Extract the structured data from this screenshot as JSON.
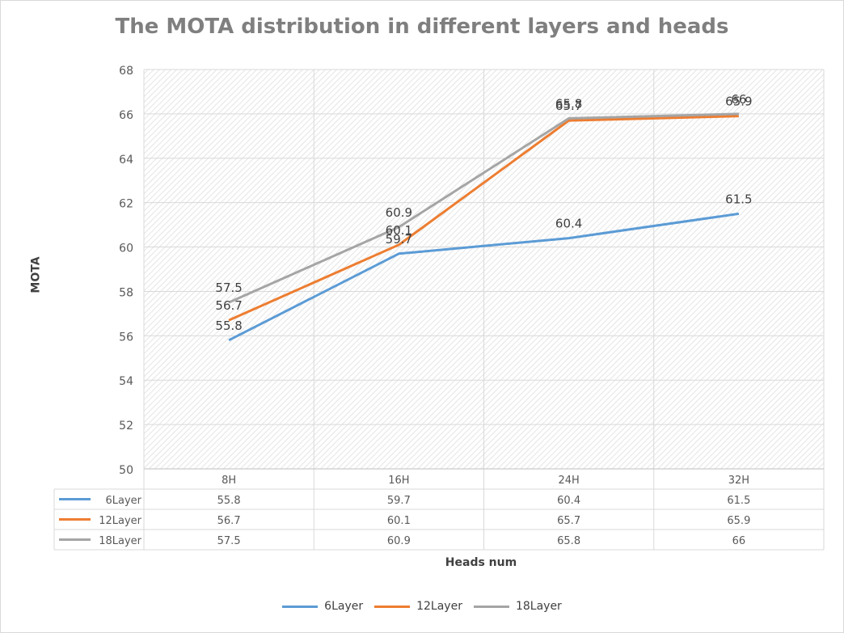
{
  "chart_data": {
    "type": "line",
    "title": "The MOTA distribution in different layers and heads",
    "xlabel": "Heads num",
    "ylabel": "MOTA",
    "categories": [
      "8H",
      "16H",
      "24H",
      "32H"
    ],
    "ylim": [
      50,
      68
    ],
    "yticks": [
      50,
      52,
      54,
      56,
      58,
      60,
      62,
      64,
      66,
      68
    ],
    "yticks_labels": [
      "50",
      "52",
      "54",
      "56",
      "58",
      "60",
      "62",
      "64",
      "66",
      "68"
    ],
    "series": [
      {
        "name": "6Layer",
        "color": "#5b9bd5",
        "values": [
          55.8,
          59.7,
          60.4,
          61.5
        ],
        "display": [
          "55.8",
          "59.7",
          "60.4",
          "61.5"
        ]
      },
      {
        "name": "12Layer",
        "color": "#ed7d31",
        "values": [
          56.7,
          60.1,
          65.7,
          65.9
        ],
        "display": [
          "56.7",
          "60.1",
          "65.7",
          "65.9"
        ]
      },
      {
        "name": "18Layer",
        "color": "#a5a5a5",
        "values": [
          57.5,
          60.9,
          65.8,
          66
        ],
        "display": [
          "57.5",
          "60.9",
          "65.8",
          "66"
        ]
      }
    ],
    "grid": true,
    "legend_position": "bottom",
    "data_table": true
  }
}
